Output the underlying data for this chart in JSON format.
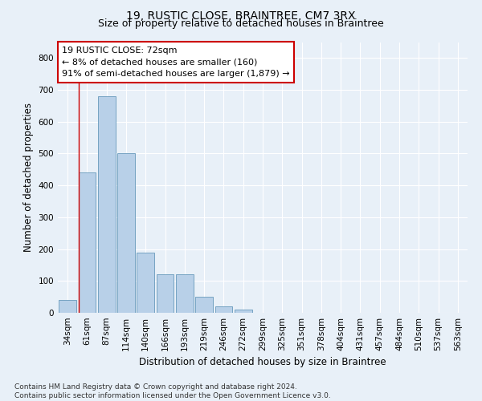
{
  "title": "19, RUSTIC CLOSE, BRAINTREE, CM7 3RX",
  "subtitle": "Size of property relative to detached houses in Braintree",
  "xlabel": "Distribution of detached houses by size in Braintree",
  "ylabel": "Number of detached properties",
  "bar_labels": [
    "34sqm",
    "61sqm",
    "87sqm",
    "114sqm",
    "140sqm",
    "166sqm",
    "193sqm",
    "219sqm",
    "246sqm",
    "272sqm",
    "299sqm",
    "325sqm",
    "351sqm",
    "378sqm",
    "404sqm",
    "431sqm",
    "457sqm",
    "484sqm",
    "510sqm",
    "537sqm",
    "563sqm"
  ],
  "bar_values": [
    40,
    440,
    680,
    500,
    190,
    120,
    120,
    50,
    20,
    10,
    0,
    0,
    0,
    0,
    0,
    0,
    0,
    0,
    0,
    0,
    0
  ],
  "bar_color": "#b8d0e8",
  "bar_edge_color": "#6699bb",
  "bg_color": "#e8f0f8",
  "plot_bg_color": "#e8f0f8",
  "grid_color": "#ffffff",
  "annotation_box_text": "19 RUSTIC CLOSE: 72sqm\n← 8% of detached houses are smaller (160)\n91% of semi-detached houses are larger (1,879) →",
  "red_line_x": 0.575,
  "ylim": [
    0,
    850
  ],
  "yticks": [
    0,
    100,
    200,
    300,
    400,
    500,
    600,
    700,
    800
  ],
  "footnote": "Contains HM Land Registry data © Crown copyright and database right 2024.\nContains public sector information licensed under the Open Government Licence v3.0.",
  "title_fontsize": 10,
  "subtitle_fontsize": 9,
  "xlabel_fontsize": 8.5,
  "ylabel_fontsize": 8.5,
  "tick_fontsize": 7.5,
  "annotation_fontsize": 8,
  "footnote_fontsize": 6.5
}
